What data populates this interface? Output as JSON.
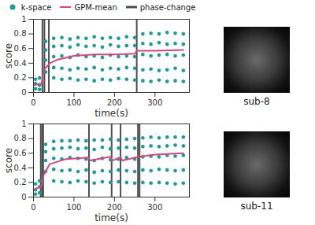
{
  "chart_data": [
    {
      "type": "scatter",
      "xlabel": "time(s)",
      "ylabel": "score",
      "annotation": "sub-8",
      "legend": "top",
      "xlim": [
        0,
        385
      ],
      "xticks": [
        0,
        100,
        200,
        300
      ],
      "ylim": [
        0,
        1
      ],
      "yticks": [
        0,
        0.2,
        0.4,
        0.6,
        0.8,
        1
      ],
      "series": [
        {
          "name": "k-space",
          "type": "scatter",
          "marker": "hexagon",
          "color": "#1f9a96",
          "x": [
            5,
            15,
            30,
            50,
            70,
            90,
            110,
            130,
            150,
            170,
            190,
            210,
            230,
            250,
            270,
            290,
            310,
            330,
            350,
            370
          ],
          "values": [
            [
              0.05,
              0.12,
              0.18
            ],
            [
              0.04,
              0.1,
              0.2
            ],
            [
              0.28,
              0.44,
              0.58,
              0.7
            ],
            [
              0.2,
              0.34,
              0.49,
              0.63,
              0.74
            ],
            [
              0.18,
              0.33,
              0.5,
              0.64,
              0.75
            ],
            [
              0.19,
              0.31,
              0.48,
              0.62,
              0.73
            ],
            [
              0.17,
              0.33,
              0.51,
              0.65,
              0.75
            ],
            [
              0.18,
              0.32,
              0.49,
              0.63,
              0.74
            ],
            [
              0.16,
              0.34,
              0.5,
              0.64,
              0.76
            ],
            [
              0.18,
              0.31,
              0.48,
              0.62,
              0.74
            ],
            [
              0.17,
              0.33,
              0.51,
              0.65,
              0.75
            ],
            [
              0.19,
              0.32,
              0.49,
              0.63,
              0.74
            ],
            [
              0.18,
              0.34,
              0.5,
              0.64,
              0.76
            ],
            [
              0.17,
              0.33,
              0.49,
              0.64,
              0.75
            ],
            [
              0.16,
              0.31,
              0.52,
              0.67,
              0.8
            ],
            [
              0.15,
              0.32,
              0.5,
              0.66,
              0.81
            ],
            [
              0.17,
              0.3,
              0.51,
              0.68,
              0.8
            ],
            [
              0.15,
              0.31,
              0.52,
              0.66,
              0.82
            ],
            [
              0.16,
              0.33,
              0.5,
              0.67,
              0.81
            ],
            [
              0.15,
              0.3,
              0.51,
              0.66,
              0.8
            ]
          ]
        },
        {
          "name": "GPM-mean",
          "type": "line",
          "color": "#d2487c",
          "x": [
            0,
            20,
            25,
            40,
            60,
            100,
            150,
            200,
            250,
            255,
            300,
            370
          ],
          "values": [
            0.1,
            0.12,
            0.3,
            0.4,
            0.45,
            0.5,
            0.52,
            0.52,
            0.53,
            0.57,
            0.57,
            0.58
          ]
        },
        {
          "name": "phase-change",
          "type": "rule",
          "color": "#4d4d4d",
          "x": [
            22,
            27,
            38,
            255
          ]
        }
      ]
    },
    {
      "type": "scatter",
      "xlabel": "time(s)",
      "ylabel": "score",
      "annotation": "sub-11",
      "xlim": [
        0,
        385
      ],
      "xticks": [
        0,
        100,
        200,
        300
      ],
      "ylim": [
        0,
        1
      ],
      "yticks": [
        0,
        0.2,
        0.4,
        0.6,
        0.8,
        1
      ],
      "series": [
        {
          "name": "k-space",
          "type": "scatter",
          "marker": "hexagon",
          "color": "#1f9a96",
          "x": [
            5,
            15,
            30,
            50,
            70,
            90,
            110,
            130,
            150,
            170,
            190,
            210,
            230,
            250,
            270,
            290,
            310,
            330,
            350,
            370
          ],
          "values": [
            [
              0.04,
              0.1,
              0.18
            ],
            [
              0.06,
              0.14,
              0.22
            ],
            [
              0.35,
              0.5,
              0.62,
              0.72
            ],
            [
              0.22,
              0.38,
              0.53,
              0.66,
              0.76
            ],
            [
              0.21,
              0.36,
              0.52,
              0.67,
              0.77
            ],
            [
              0.2,
              0.37,
              0.54,
              0.68,
              0.77
            ],
            [
              0.22,
              0.35,
              0.53,
              0.66,
              0.78
            ],
            [
              0.21,
              0.37,
              0.52,
              0.67,
              0.77
            ],
            [
              0.19,
              0.34,
              0.5,
              0.65,
              0.78
            ],
            [
              0.21,
              0.36,
              0.53,
              0.68,
              0.78
            ],
            [
              0.2,
              0.35,
              0.51,
              0.66,
              0.79
            ],
            [
              0.21,
              0.37,
              0.52,
              0.67,
              0.78
            ],
            [
              0.2,
              0.36,
              0.54,
              0.68,
              0.79
            ],
            [
              0.19,
              0.35,
              0.52,
              0.67,
              0.8
            ],
            [
              0.2,
              0.37,
              0.55,
              0.69,
              0.81
            ],
            [
              0.19,
              0.36,
              0.56,
              0.7,
              0.82
            ],
            [
              0.2,
              0.38,
              0.55,
              0.69,
              0.81
            ],
            [
              0.19,
              0.37,
              0.57,
              0.7,
              0.82
            ],
            [
              0.18,
              0.36,
              0.56,
              0.71,
              0.82
            ],
            [
              0.19,
              0.37,
              0.57,
              0.7,
              0.82
            ]
          ]
        },
        {
          "name": "GPM-mean",
          "type": "line",
          "color": "#d2487c",
          "x": [
            0,
            20,
            25,
            40,
            80,
            135,
            140,
            190,
            195,
            215,
            220,
            260,
            300,
            370
          ],
          "values": [
            0.1,
            0.15,
            0.3,
            0.45,
            0.52,
            0.54,
            0.5,
            0.55,
            0.5,
            0.54,
            0.5,
            0.55,
            0.58,
            0.6
          ]
        },
        {
          "name": "phase-change",
          "type": "rule",
          "color": "#4d4d4d",
          "x": [
            18,
            22,
            24,
            137,
            193,
            215,
            258,
            262
          ]
        }
      ]
    }
  ]
}
